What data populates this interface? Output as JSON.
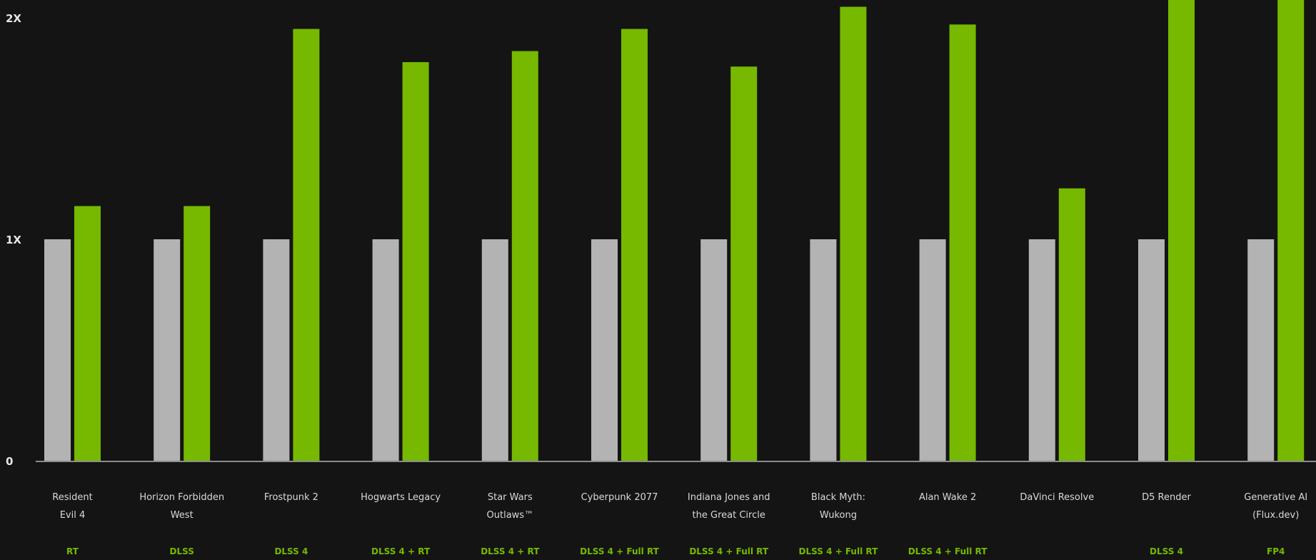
{
  "colors": {
    "background": "#141414",
    "baseline_bar": "#b3b3b3",
    "highlight_bar": "#76b900",
    "axis_line": "#8c8c8c",
    "text": "#d9d9d9",
    "feature_text": "#76b900"
  },
  "chart_data": {
    "type": "bar",
    "title": "",
    "xlabel": "",
    "ylabel": "",
    "ylim": [
      0,
      2.08
    ],
    "yticks": [
      {
        "value": 0,
        "label": "0"
      },
      {
        "value": 1,
        "label": "1X"
      },
      {
        "value": 2,
        "label": "2X"
      }
    ],
    "grid": false,
    "legend": "none",
    "categories": [
      {
        "lines": [
          "Resident",
          "Evil 4"
        ],
        "feature": "RT"
      },
      {
        "lines": [
          "Horizon Forbidden",
          "West"
        ],
        "feature": "DLSS"
      },
      {
        "lines": [
          "Frostpunk 2"
        ],
        "feature": "DLSS 4"
      },
      {
        "lines": [
          "Hogwarts Legacy"
        ],
        "feature": "DLSS 4 + RT"
      },
      {
        "lines": [
          "Star Wars",
          "Outlaws™"
        ],
        "feature": "DLSS 4 + RT"
      },
      {
        "lines": [
          "Cyberpunk 2077"
        ],
        "feature": "DLSS 4 + Full RT"
      },
      {
        "lines": [
          "Indiana Jones and",
          "the Great Circle"
        ],
        "feature": "DLSS 4 + Full RT"
      },
      {
        "lines": [
          "Black Myth:",
          "Wukong"
        ],
        "feature": "DLSS 4 + Full RT"
      },
      {
        "lines": [
          "Alan Wake 2"
        ],
        "feature": "DLSS 4 + Full RT"
      },
      {
        "lines": [
          "DaVinci Resolve"
        ],
        "feature": ""
      },
      {
        "lines": [
          "D5 Render"
        ],
        "feature": "DLSS 4"
      },
      {
        "lines": [
          "Generative AI",
          "(Flux.dev)"
        ],
        "feature": "FP4"
      }
    ],
    "series": [
      {
        "values": [
          1,
          1,
          1,
          1,
          1,
          1,
          1,
          1,
          1,
          1,
          1,
          1
        ]
      },
      {
        "values": [
          1.15,
          1.15,
          1.95,
          1.8,
          1.85,
          1.95,
          1.78,
          2.05,
          1.97,
          1.23,
          2.1,
          2.1
        ]
      }
    ]
  }
}
